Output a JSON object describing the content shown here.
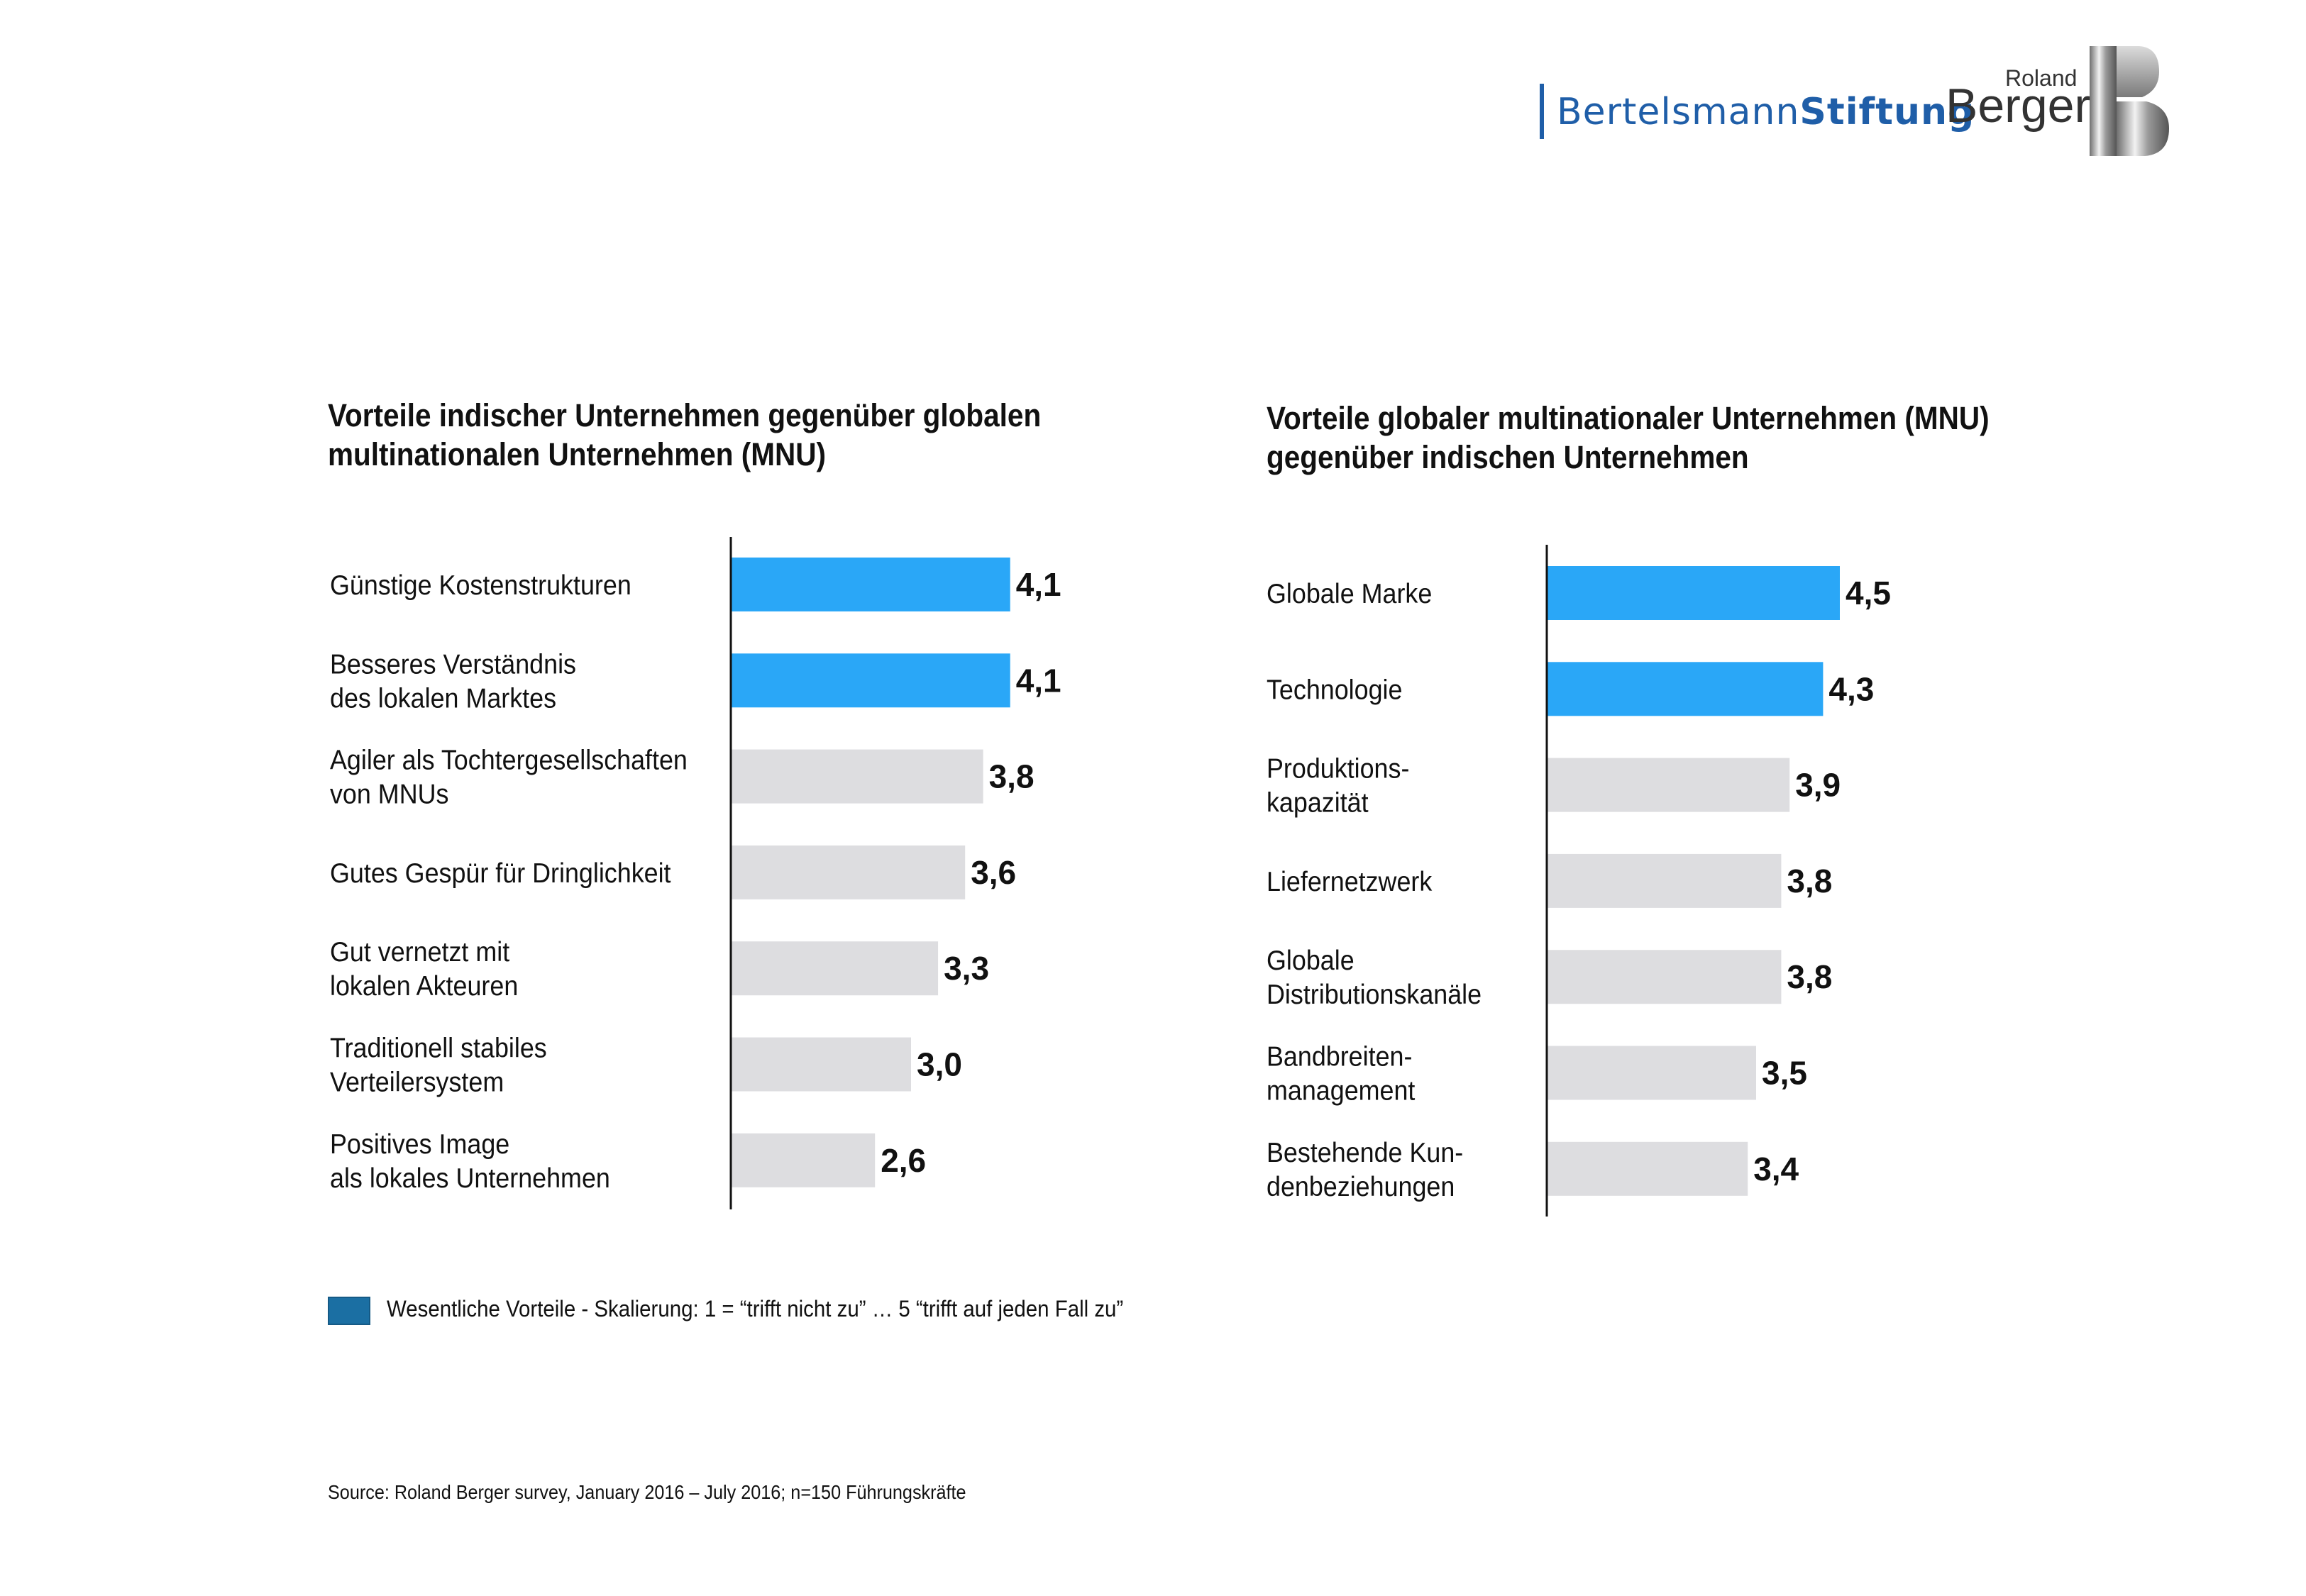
{
  "logos": {
    "bertelsmann_regular": "Bertelsmann",
    "bertelsmann_bold": "Stiftung",
    "roland_small": "Roland",
    "roland_big": "Berger"
  },
  "colors": {
    "highlight": "#2aa7f7",
    "normal": "#dddde0",
    "legend_swatch": "#1b6fa3",
    "bertelsmann_blue": "#1f5ea8"
  },
  "legend": {
    "text": "Wesentliche Vorteile  - Skalierung: 1 = “trifft nicht zu” … 5 “trifft auf jeden Fall zu”"
  },
  "source": "Source: Roland Berger survey, January 2016 – July 2016; n=150 Führungskräfte",
  "chart_data": [
    {
      "type": "bar",
      "orientation": "horizontal",
      "title_lines": [
        "Vorteile indischer Unternehmen gegenüber globalen",
        "multinationalen Unternehmen (MNU)"
      ],
      "scale": [
        1,
        5
      ],
      "categories": [
        [
          "Günstige Kostenstrukturen"
        ],
        [
          "Besseres Verständnis",
          "des lokalen Marktes"
        ],
        [
          "Agiler als Tochtergesellschaften",
          "von MNUs"
        ],
        [
          "Gutes Gespür für Dringlichkeit"
        ],
        [
          "Gut vernetzt mit",
          "lokalen Akteuren"
        ],
        [
          "Traditionell stabiles",
          "Verteilersystem"
        ],
        [
          "Positives Image",
          "als lokales Unternehmen"
        ]
      ],
      "values": [
        4.1,
        4.1,
        3.8,
        3.6,
        3.3,
        3.0,
        2.6
      ],
      "value_labels": [
        "4,1",
        "4,1",
        "3,8",
        "3,6",
        "3,3",
        "3,0",
        "2,6"
      ],
      "highlight": [
        true,
        true,
        false,
        false,
        false,
        false,
        false
      ]
    },
    {
      "type": "bar",
      "orientation": "horizontal",
      "title_lines": [
        "Vorteile globaler multinationaler Unternehmen (MNU)",
        "gegenüber indischen Unternehmen"
      ],
      "scale": [
        1,
        5
      ],
      "categories": [
        [
          "Globale Marke"
        ],
        [
          "Technologie"
        ],
        [
          "Produktions-",
          "kapazität"
        ],
        [
          "Liefernetzwerk"
        ],
        [
          "Globale",
          "Distributionskanäle"
        ],
        [
          "Bandbreiten-",
          "management"
        ],
        [
          "Bestehende Kun-",
          "denbeziehungen"
        ]
      ],
      "values": [
        4.5,
        4.3,
        3.9,
        3.8,
        3.8,
        3.5,
        3.4
      ],
      "value_labels": [
        "4,5",
        "4,3",
        "3,9",
        "3,8",
        "3,8",
        "3,5",
        "3,4"
      ],
      "highlight": [
        true,
        true,
        false,
        false,
        false,
        false,
        false
      ]
    }
  ]
}
